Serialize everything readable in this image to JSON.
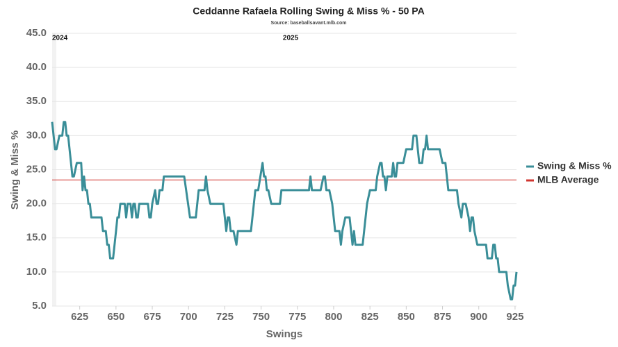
{
  "chart_data": {
    "type": "line",
    "title": "Ceddanne Rafaela Rolling Swing & Miss % - 50 PA",
    "subtitle": "Source: baseballsavant.mlb.com",
    "x_label": "Swings",
    "y_label": "Swing & Miss %",
    "x": [
      606,
      608,
      609,
      611,
      613,
      614,
      615,
      616,
      617,
      620,
      621,
      623,
      626,
      627,
      628,
      629,
      630,
      631,
      632,
      633,
      640,
      641,
      643,
      644,
      645,
      646,
      648,
      650,
      651,
      652,
      653,
      656,
      657,
      658,
      660,
      661,
      662,
      663,
      664,
      665,
      666,
      672,
      673,
      674,
      675,
      677,
      678,
      679,
      680,
      682,
      683,
      697,
      701,
      705,
      707,
      711,
      712,
      713,
      715,
      724,
      725,
      726,
      727,
      728,
      729,
      731,
      733,
      734,
      743,
      744,
      745,
      746,
      748,
      751,
      752,
      753,
      754,
      755,
      757,
      763,
      764,
      783,
      784,
      785,
      791,
      793,
      794,
      795,
      797,
      799,
      800,
      801,
      804,
      805,
      806,
      808,
      811,
      813,
      814,
      815,
      820,
      821,
      822,
      823,
      825,
      829,
      830,
      832,
      833,
      834,
      835,
      836,
      837,
      840,
      841,
      842,
      843,
      844,
      848,
      850,
      854,
      855,
      857,
      858,
      859,
      861,
      862,
      863,
      864,
      865,
      873,
      875,
      877,
      878,
      879,
      885,
      886,
      888,
      889,
      891,
      893,
      894,
      895,
      896,
      897,
      899,
      905,
      906,
      909,
      910,
      911,
      912,
      913,
      914,
      919,
      920,
      922,
      923,
      924,
      925,
      926
    ],
    "series": [
      {
        "name": "Swing & Miss %",
        "color": "#3a8e98",
        "values": [
          32,
          28,
          28,
          30,
          30,
          32,
          32,
          30,
          30,
          24,
          24,
          26,
          26,
          22,
          24,
          22,
          22,
          20,
          20,
          18,
          18,
          16,
          16,
          14,
          14,
          12,
          12,
          16,
          18,
          18,
          20,
          20,
          18,
          20,
          20,
          18,
          20,
          20,
          18,
          18,
          20,
          20,
          18,
          18,
          20,
          22,
          20,
          20,
          22,
          22,
          24,
          24,
          18,
          18,
          22,
          22,
          24,
          22,
          20,
          20,
          18,
          16,
          18,
          18,
          16,
          16,
          14,
          16,
          16,
          18,
          20,
          22,
          22,
          26,
          24,
          24,
          22,
          22,
          20,
          20,
          22,
          22,
          24,
          22,
          22,
          24,
          24,
          22,
          22,
          20,
          18,
          16,
          16,
          14,
          16,
          18,
          18,
          14,
          16,
          14,
          14,
          16,
          18,
          20,
          22,
          22,
          24,
          26,
          26,
          24,
          24,
          22,
          24,
          24,
          26,
          24,
          24,
          26,
          26,
          28,
          28,
          30,
          30,
          28,
          26,
          26,
          28,
          28,
          30,
          28,
          28,
          26,
          26,
          24,
          22,
          22,
          20,
          18,
          20,
          20,
          18,
          16,
          18,
          18,
          16,
          14,
          14,
          12,
          12,
          14,
          14,
          12,
          12,
          10,
          10,
          8,
          6,
          6,
          8,
          8,
          10
        ]
      }
    ],
    "reference_lines": [
      {
        "name": "MLB Average",
        "color": "#d0352f",
        "y": 23.5
      }
    ],
    "annotations": [
      {
        "text": "2024",
        "x": 606
      },
      {
        "text": "2025",
        "x": 765
      }
    ],
    "xlim": [
      606,
      926
    ],
    "xticks": [
      625,
      650,
      675,
      700,
      725,
      750,
      775,
      800,
      825,
      850,
      875,
      900,
      925
    ],
    "ylim": [
      5,
      45
    ],
    "yticks": [
      {
        "value": 5,
        "label": "5.0"
      },
      {
        "value": 10,
        "label": "10.0"
      },
      {
        "value": 15,
        "label": "15.0"
      },
      {
        "value": 20,
        "label": "20.0"
      },
      {
        "value": 25,
        "label": "25.0"
      },
      {
        "value": 30,
        "label": "30.0"
      },
      {
        "value": 35,
        "label": "35.0"
      },
      {
        "value": 40,
        "label": "40.0"
      },
      {
        "value": 45,
        "label": "45.0"
      }
    ],
    "grid": true,
    "legend": "right"
  }
}
